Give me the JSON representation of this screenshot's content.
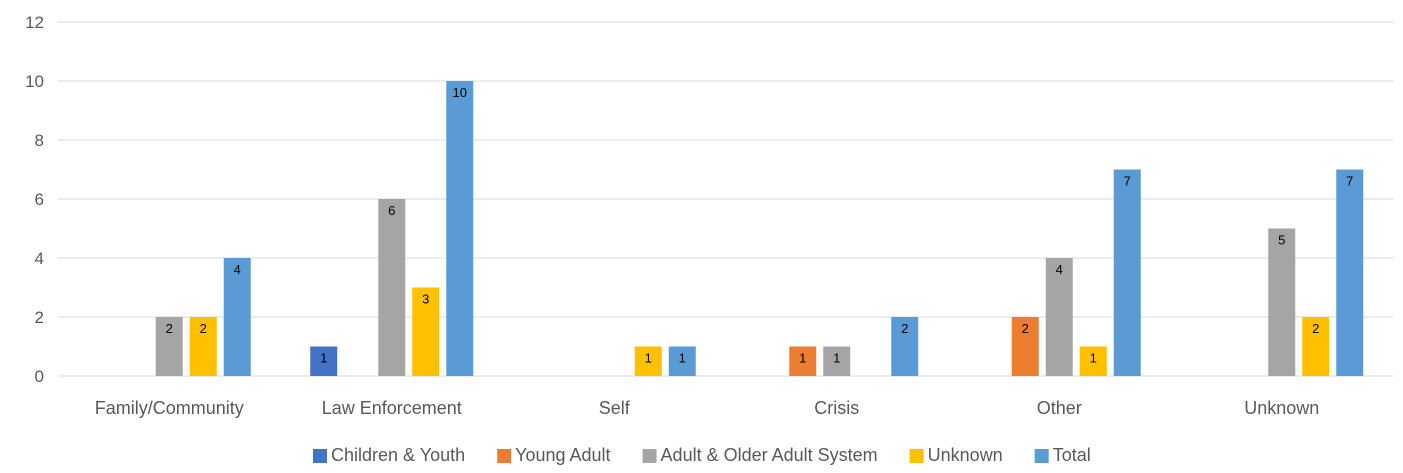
{
  "chart_data": {
    "type": "bar",
    "title": "",
    "xlabel": "",
    "ylabel": "",
    "ylim": [
      0,
      12
    ],
    "yticks": [
      0,
      2,
      4,
      6,
      8,
      10,
      12
    ],
    "grid": true,
    "legend_position": "bottom",
    "categories": [
      "Family/Community",
      "Law Enforcement",
      "Self",
      "Crisis",
      "Other",
      "Unknown"
    ],
    "series": [
      {
        "name": "Children & Youth",
        "color": "#4472C4",
        "values": [
          0,
          1,
          0,
          0,
          0,
          0
        ]
      },
      {
        "name": "Young Adult",
        "color": "#ED7D31",
        "values": [
          0,
          0,
          0,
          1,
          2,
          0
        ]
      },
      {
        "name": "Adult & Older Adult System",
        "color": "#A5A5A5",
        "values": [
          2,
          6,
          0,
          1,
          4,
          5
        ]
      },
      {
        "name": "Unknown",
        "color": "#FFC000",
        "values": [
          2,
          3,
          1,
          0,
          1,
          2
        ]
      },
      {
        "name": "Total",
        "color": "#5B9BD5",
        "values": [
          4,
          10,
          1,
          2,
          7,
          7
        ]
      }
    ]
  }
}
